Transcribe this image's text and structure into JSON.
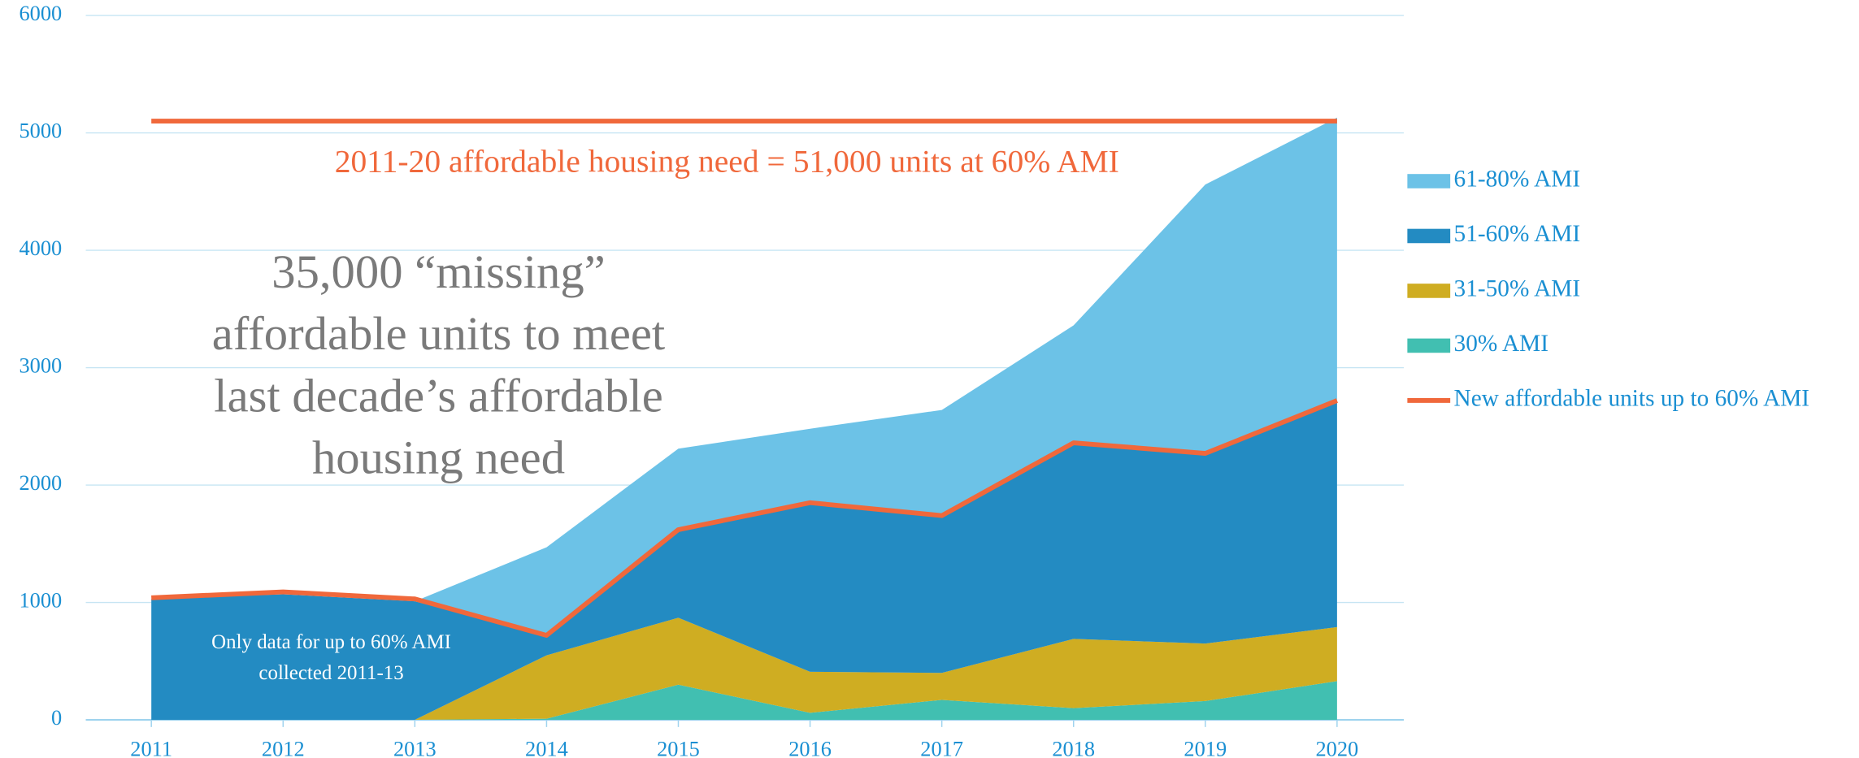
{
  "chart_data": {
    "type": "stacked_area",
    "x": [
      2011,
      2012,
      2013,
      2014,
      2015,
      2016,
      2017,
      2018,
      2019,
      2020
    ],
    "series": [
      {
        "name": "30% AMI",
        "color": "#41bfb1",
        "values": [
          0,
          0,
          0,
          10,
          300,
          60,
          170,
          100,
          160,
          330
        ]
      },
      {
        "name": "31-50% AMI",
        "color": "#cfad22",
        "values": [
          0,
          0,
          0,
          540,
          570,
          350,
          230,
          590,
          490,
          460
        ]
      },
      {
        "name": "51-60% AMI",
        "color": "#238bc2",
        "values": [
          1030,
          1070,
          1010,
          170,
          740,
          1430,
          1330,
          1660,
          1610,
          1920
        ]
      },
      {
        "name": "61-80% AMI",
        "color": "#6cc2e7",
        "values": [
          0,
          0,
          0,
          750,
          700,
          640,
          910,
          1010,
          2300,
          2420
        ]
      }
    ],
    "lines": [
      {
        "name": "New affordable units up to 60% AMI",
        "color": "#f0683b",
        "values": [
          1040,
          1090,
          1030,
          720,
          1620,
          1850,
          1740,
          2360,
          2270,
          2720
        ]
      }
    ],
    "reference_line": {
      "value": 5100,
      "color": "#f0683b"
    },
    "annotations": [
      {
        "text": "2011-20 affordable housing need = 51,000 units at 60% AMI"
      },
      {
        "lines": [
          "35,000 “missing”",
          "affordable units to meet",
          "last decade’s affordable",
          "housing need"
        ]
      },
      {
        "lines": [
          "Only data for up to 60% AMI",
          "collected 2011-13"
        ]
      }
    ],
    "xlim": [
      2011,
      2020
    ],
    "ylim": [
      0,
      6000
    ],
    "yticks": [
      0,
      1000,
      2000,
      3000,
      4000,
      5000,
      6000
    ],
    "grid": true,
    "legend": "right"
  }
}
